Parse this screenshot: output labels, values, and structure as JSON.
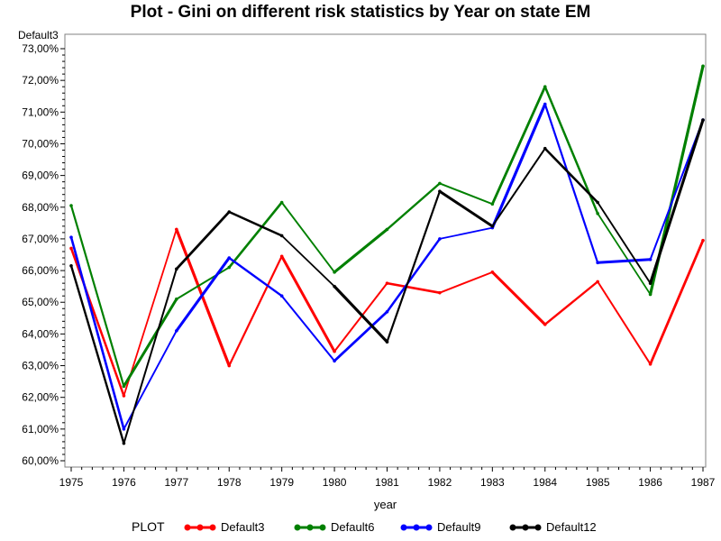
{
  "chart_data": {
    "type": "line",
    "title": "Plot - Gini on different risk statistics by Year on state EM",
    "xlabel": "year",
    "ylabel": "Default3",
    "x": [
      1975,
      1976,
      1977,
      1978,
      1979,
      1980,
      1981,
      1982,
      1983,
      1984,
      1985,
      1986,
      1987
    ],
    "ylim": [
      60,
      73
    ],
    "yticks": [
      "60,00%",
      "61,00%",
      "62,00%",
      "63,00%",
      "64,00%",
      "65,00%",
      "66,00%",
      "67,00%",
      "68,00%",
      "69,00%",
      "70,00%",
      "71,00%",
      "72,00%",
      "73,00%"
    ],
    "legend_title": "PLOT",
    "legend_position": "bottom",
    "grid": false,
    "series": [
      {
        "name": "Default3",
        "color": "#ff0000",
        "values": [
          66.7,
          62.05,
          67.3,
          63.0,
          66.45,
          63.45,
          65.6,
          65.3,
          65.95,
          64.3,
          65.65,
          63.05,
          66.95
        ]
      },
      {
        "name": "Default6",
        "color": "#008000",
        "values": [
          68.05,
          62.35,
          65.1,
          66.1,
          68.15,
          65.95,
          67.3,
          68.75,
          68.1,
          71.8,
          67.8,
          65.25,
          72.45
        ]
      },
      {
        "name": "Default9",
        "color": "#0000ff",
        "values": [
          67.05,
          61.0,
          64.1,
          66.4,
          65.2,
          63.15,
          64.7,
          67.0,
          67.35,
          71.25,
          66.25,
          66.35,
          70.75
        ]
      },
      {
        "name": "Default12",
        "color": "#000000",
        "values": [
          66.15,
          60.55,
          66.05,
          67.85,
          67.1,
          65.5,
          63.75,
          68.5,
          67.4,
          69.85,
          68.15,
          65.6,
          70.75
        ]
      }
    ]
  }
}
